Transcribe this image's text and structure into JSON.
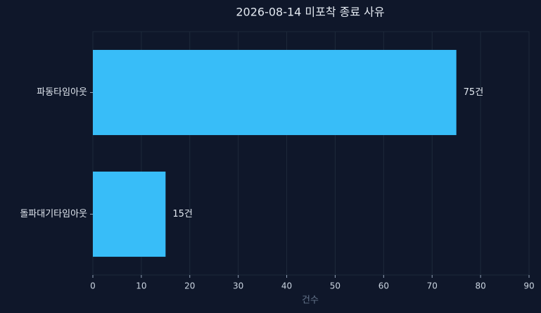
{
  "chart_data": {
    "type": "barh",
    "title": "2026-08-14 미포착 종료 사유",
    "categories": [
      "파동타임아웃",
      "돌파대기타임아웃"
    ],
    "values": [
      75,
      15
    ],
    "value_labels": [
      "75건",
      "15건"
    ],
    "color": "#38bdf8",
    "xlabel": "건수",
    "xlim": [
      0,
      90
    ],
    "xticks": [
      0,
      10,
      20,
      30,
      40,
      50,
      60,
      70,
      80,
      90
    ],
    "grid": true
  }
}
